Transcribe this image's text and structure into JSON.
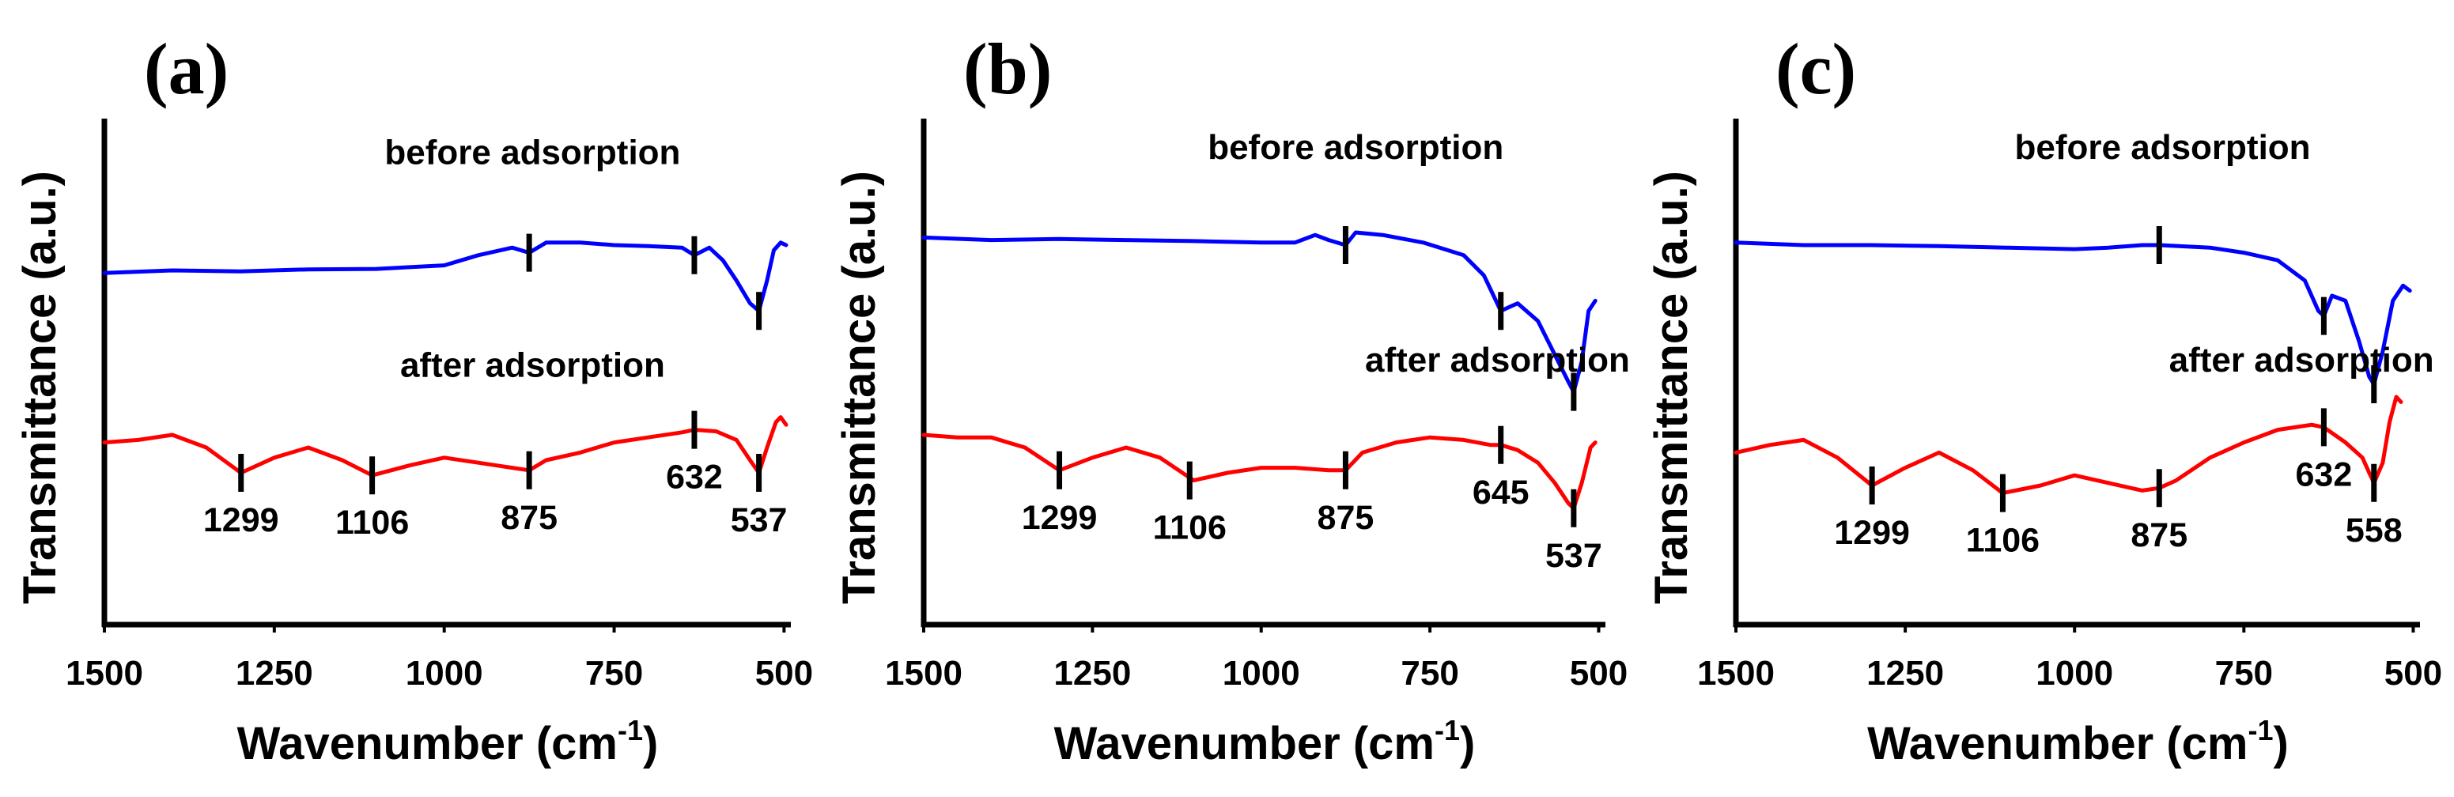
{
  "chart_data": [
    {
      "type": "line",
      "panel_label": "(a)",
      "xlabel": "Wavenumber (cm",
      "xlabel_sup": "-1",
      "xlabel_close": ")",
      "ylabel": "Transmittance (a.u.)",
      "xlim": [
        1500,
        490
      ],
      "x_ticks": [
        1500,
        1250,
        1000,
        750,
        500
      ],
      "x_tick_labels": [
        "1500",
        "1250",
        "1000",
        "750",
        "500"
      ],
      "ylim": [
        0,
        10
      ],
      "colors": {
        "before": "#0000ff",
        "after": "#ff0000"
      },
      "series": [
        {
          "name": "before adsorption",
          "color": "#0000ff",
          "points": [
            [
              1500,
              6.95
            ],
            [
              1400,
              7.0
            ],
            [
              1300,
              6.98
            ],
            [
              1200,
              7.02
            ],
            [
              1100,
              7.03
            ],
            [
              1000,
              7.1
            ],
            [
              950,
              7.3
            ],
            [
              900,
              7.45
            ],
            [
              875,
              7.35
            ],
            [
              850,
              7.55
            ],
            [
              800,
              7.55
            ],
            [
              750,
              7.5
            ],
            [
              700,
              7.48
            ],
            [
              650,
              7.45
            ],
            [
              632,
              7.3
            ],
            [
              610,
              7.45
            ],
            [
              590,
              7.2
            ],
            [
              570,
              6.8
            ],
            [
              550,
              6.35
            ],
            [
              537,
              6.2
            ],
            [
              525,
              6.8
            ],
            [
              515,
              7.4
            ],
            [
              505,
              7.55
            ],
            [
              497,
              7.5
            ]
          ],
          "label_x": 870,
          "label_y": 9.1
        },
        {
          "name": "after adsorption",
          "color": "#ff0000",
          "points": [
            [
              1500,
              3.6
            ],
            [
              1450,
              3.65
            ],
            [
              1400,
              3.75
            ],
            [
              1350,
              3.5
            ],
            [
              1299,
              3.0
            ],
            [
              1250,
              3.3
            ],
            [
              1200,
              3.5
            ],
            [
              1150,
              3.25
            ],
            [
              1106,
              2.95
            ],
            [
              1050,
              3.15
            ],
            [
              1000,
              3.3
            ],
            [
              950,
              3.2
            ],
            [
              900,
              3.1
            ],
            [
              875,
              3.05
            ],
            [
              850,
              3.25
            ],
            [
              800,
              3.4
            ],
            [
              750,
              3.6
            ],
            [
              700,
              3.7
            ],
            [
              650,
              3.8
            ],
            [
              632,
              3.85
            ],
            [
              600,
              3.82
            ],
            [
              570,
              3.65
            ],
            [
              550,
              3.25
            ],
            [
              537,
              3.0
            ],
            [
              525,
              3.5
            ],
            [
              512,
              4.0
            ],
            [
              505,
              4.1
            ],
            [
              497,
              3.95
            ]
          ],
          "label_x": 870,
          "label_y": 4.9
        }
      ],
      "peaks": [
        {
          "label": "1299",
          "x": 1299,
          "y": 3.0,
          "series": "after"
        },
        {
          "label": "1106",
          "x": 1106,
          "y": 2.95,
          "series": "after"
        },
        {
          "label": "875",
          "x": 875,
          "y": 3.05,
          "series": "after"
        },
        {
          "label": "632",
          "x": 632,
          "y": 3.85,
          "series": "after"
        },
        {
          "label": "537",
          "x": 537,
          "y": 3.0,
          "series": "after"
        }
      ],
      "before_marks": [
        875,
        632,
        537
      ]
    },
    {
      "type": "line",
      "panel_label": "(b)",
      "xlabel": "Wavenumber (cm",
      "xlabel_sup": "-1",
      "xlabel_close": ")",
      "ylabel": "Transmittance (a.u.)",
      "xlim": [
        1500,
        490
      ],
      "x_ticks": [
        1500,
        1250,
        1000,
        750,
        500
      ],
      "x_tick_labels": [
        "1500",
        "1250",
        "1000",
        "750",
        "500"
      ],
      "ylim": [
        0,
        10
      ],
      "colors": {
        "before": "#0000ff",
        "after": "#ff0000"
      },
      "series": [
        {
          "name": "before adsorption",
          "color": "#0000ff",
          "points": [
            [
              1500,
              7.65
            ],
            [
              1400,
              7.6
            ],
            [
              1300,
              7.62
            ],
            [
              1200,
              7.6
            ],
            [
              1100,
              7.58
            ],
            [
              1000,
              7.55
            ],
            [
              950,
              7.55
            ],
            [
              920,
              7.7
            ],
            [
              900,
              7.6
            ],
            [
              875,
              7.5
            ],
            [
              860,
              7.75
            ],
            [
              820,
              7.7
            ],
            [
              760,
              7.55
            ],
            [
              700,
              7.3
            ],
            [
              670,
              6.9
            ],
            [
              645,
              6.2
            ],
            [
              620,
              6.35
            ],
            [
              590,
              6.0
            ],
            [
              560,
              5.2
            ],
            [
              545,
              4.8
            ],
            [
              537,
              4.6
            ],
            [
              525,
              5.2
            ],
            [
              515,
              6.2
            ],
            [
              505,
              6.4
            ]
          ],
          "label_x": 860,
          "label_y": 9.2
        },
        {
          "name": "after adsorption",
          "color": "#ff0000",
          "points": [
            [
              1500,
              3.75
            ],
            [
              1450,
              3.7
            ],
            [
              1400,
              3.7
            ],
            [
              1350,
              3.5
            ],
            [
              1299,
              3.05
            ],
            [
              1250,
              3.3
            ],
            [
              1200,
              3.5
            ],
            [
              1150,
              3.3
            ],
            [
              1100,
              2.85
            ],
            [
              1050,
              3.0
            ],
            [
              1000,
              3.1
            ],
            [
              950,
              3.1
            ],
            [
              900,
              3.05
            ],
            [
              875,
              3.05
            ],
            [
              850,
              3.4
            ],
            [
              800,
              3.6
            ],
            [
              750,
              3.7
            ],
            [
              700,
              3.65
            ],
            [
              660,
              3.55
            ],
            [
              645,
              3.55
            ],
            [
              620,
              3.45
            ],
            [
              590,
              3.2
            ],
            [
              565,
              2.8
            ],
            [
              545,
              2.4
            ],
            [
              537,
              2.3
            ],
            [
              525,
              2.8
            ],
            [
              512,
              3.5
            ],
            [
              505,
              3.6
            ]
          ],
          "label_x": 650,
          "label_y": 5.0
        }
      ],
      "peaks": [
        {
          "label": "1299",
          "x": 1299,
          "y": 3.05,
          "series": "after"
        },
        {
          "label": "1106",
          "x": 1106,
          "y": 2.85,
          "series": "after"
        },
        {
          "label": "875",
          "x": 875,
          "y": 3.05,
          "series": "after"
        },
        {
          "label": "645",
          "x": 645,
          "y": 3.55,
          "series": "after"
        },
        {
          "label": "537",
          "x": 537,
          "y": 2.3,
          "series": "after"
        }
      ],
      "before_marks": [
        875,
        645,
        537
      ]
    },
    {
      "type": "line",
      "panel_label": "(c)",
      "xlabel": "Wavenumber (cm",
      "xlabel_sup": "-1",
      "xlabel_close": ")",
      "ylabel": "Transmittance (a.u.)",
      "xlim": [
        1500,
        490
      ],
      "x_ticks": [
        1500,
        1250,
        1000,
        750,
        500
      ],
      "x_tick_labels": [
        "1500",
        "1250",
        "1000",
        "750",
        "500"
      ],
      "ylim": [
        0,
        10
      ],
      "colors": {
        "before": "#0000ff",
        "after": "#ff0000"
      },
      "series": [
        {
          "name": "before adsorption",
          "color": "#0000ff",
          "points": [
            [
              1500,
              7.55
            ],
            [
              1400,
              7.5
            ],
            [
              1300,
              7.5
            ],
            [
              1200,
              7.48
            ],
            [
              1100,
              7.45
            ],
            [
              1000,
              7.42
            ],
            [
              950,
              7.45
            ],
            [
              900,
              7.5
            ],
            [
              875,
              7.5
            ],
            [
              800,
              7.45
            ],
            [
              750,
              7.35
            ],
            [
              700,
              7.2
            ],
            [
              660,
              6.8
            ],
            [
              640,
              6.2
            ],
            [
              632,
              6.1
            ],
            [
              620,
              6.5
            ],
            [
              600,
              6.4
            ],
            [
              580,
              5.6
            ],
            [
              565,
              4.9
            ],
            [
              558,
              4.75
            ],
            [
              545,
              5.4
            ],
            [
              530,
              6.4
            ],
            [
              515,
              6.7
            ],
            [
              505,
              6.6
            ]
          ],
          "label_x": 870,
          "label_y": 9.2
        },
        {
          "name": "after adsorption",
          "color": "#ff0000",
          "points": [
            [
              1500,
              3.4
            ],
            [
              1450,
              3.55
            ],
            [
              1400,
              3.65
            ],
            [
              1350,
              3.3
            ],
            [
              1299,
              2.75
            ],
            [
              1250,
              3.1
            ],
            [
              1200,
              3.4
            ],
            [
              1150,
              3.05
            ],
            [
              1106,
              2.6
            ],
            [
              1050,
              2.75
            ],
            [
              1000,
              2.95
            ],
            [
              950,
              2.8
            ],
            [
              900,
              2.65
            ],
            [
              875,
              2.7
            ],
            [
              850,
              2.85
            ],
            [
              800,
              3.3
            ],
            [
              750,
              3.6
            ],
            [
              700,
              3.85
            ],
            [
              650,
              3.95
            ],
            [
              632,
              3.9
            ],
            [
              600,
              3.6
            ],
            [
              575,
              3.3
            ],
            [
              565,
              3.0
            ],
            [
              558,
              2.8
            ],
            [
              545,
              3.2
            ],
            [
              535,
              4.0
            ],
            [
              525,
              4.5
            ],
            [
              518,
              4.4
            ]
          ],
          "label_x": 665,
          "label_y": 5.0
        }
      ],
      "peaks": [
        {
          "label": "1299",
          "x": 1299,
          "y": 2.75,
          "series": "after"
        },
        {
          "label": "1106",
          "x": 1106,
          "y": 2.6,
          "series": "after"
        },
        {
          "label": "875",
          "x": 875,
          "y": 2.7,
          "series": "after"
        },
        {
          "label": "632",
          "x": 632,
          "y": 3.9,
          "series": "after"
        },
        {
          "label": "558",
          "x": 558,
          "y": 2.8,
          "series": "after"
        }
      ],
      "before_marks": [
        875,
        632,
        558
      ]
    }
  ]
}
